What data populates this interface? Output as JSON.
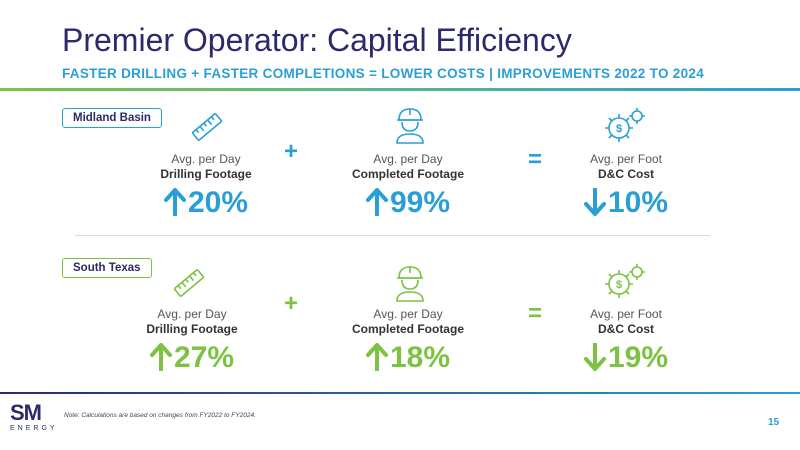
{
  "header": {
    "title": "Premier Operator: Capital Efficiency",
    "subtitle": "FASTER DRILLING + FASTER COMPLETIONS = LOWER COSTS | IMPROVEMENTS 2022 TO 2024"
  },
  "operators": {
    "plus": "+",
    "equals": "="
  },
  "rows": [
    {
      "region": "Midland Basin",
      "accent": "#2a9fd6",
      "drilling": {
        "label": "Avg. per Day",
        "sub": "Drilling Footage",
        "value": "20%",
        "direction": "up"
      },
      "completed": {
        "label": "Avg. per Day",
        "sub": "Completed Footage",
        "value": "99%",
        "direction": "up"
      },
      "cost": {
        "label": "Avg. per Foot",
        "sub": "D&C Cost",
        "value": "10%",
        "direction": "down"
      }
    },
    {
      "region": "South Texas",
      "accent": "#7dc242",
      "drilling": {
        "label": "Avg. per Day",
        "sub": "Drilling Footage",
        "value": "27%",
        "direction": "up"
      },
      "completed": {
        "label": "Avg. per Day",
        "sub": "Completed Footage",
        "value": "18%",
        "direction": "up"
      },
      "cost": {
        "label": "Avg. per Foot",
        "sub": "D&C Cost",
        "value": "19%",
        "direction": "down"
      }
    }
  ],
  "icons": {
    "drilling": "ruler-icon",
    "completed": "worker-hardhat-icon",
    "cost": "gear-dollar-icon"
  },
  "footer": {
    "note": "Note: Calculations are based on changes from FY2022 to FY2024.",
    "page_number": "15",
    "logo_main": "SM",
    "logo_sub": "ENERGY"
  }
}
